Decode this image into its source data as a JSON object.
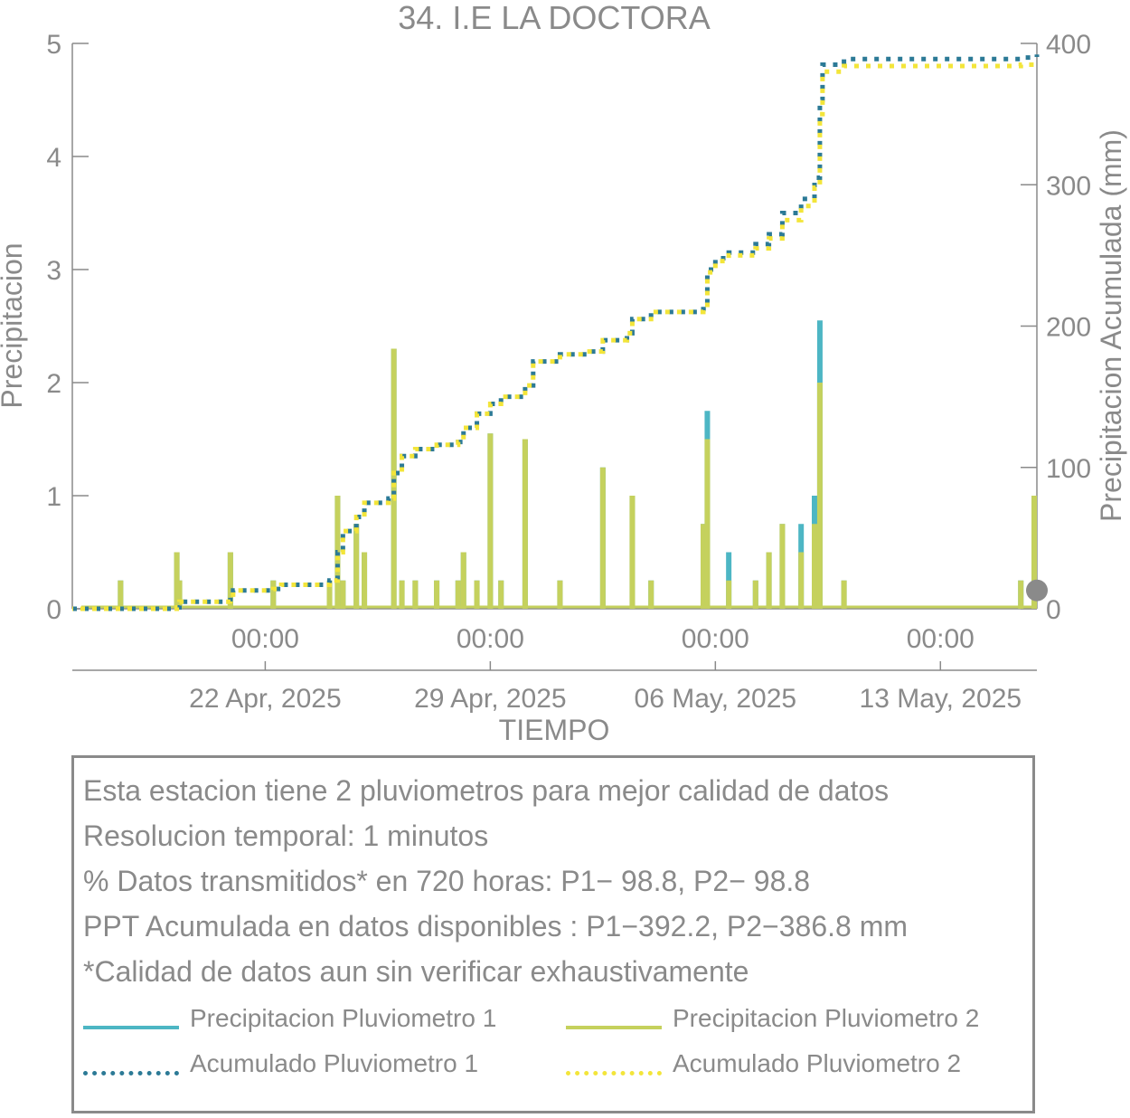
{
  "chart_data": {
    "type": "bar+line",
    "title": "34. I.E LA DOCTORA",
    "xlabel": "TIEMPO",
    "ylabel_left": "Precipitacion",
    "ylabel_right": "Precipitacion Acumulada (mm)",
    "ylim_left": [
      0,
      5
    ],
    "ylim_right": [
      0,
      400
    ],
    "xlim": [
      "2025-04-16 00:00",
      "2025-05-16 00:00"
    ],
    "grid": false,
    "y_ticks_left": [
      "0",
      "1",
      "2",
      "3",
      "4",
      "5"
    ],
    "y_ticks_right": [
      "0",
      "100",
      "200",
      "300",
      "400"
    ],
    "x_ticks": [
      {
        "time": "00:00",
        "date": "22 Apr, 2025",
        "x": "2025-04-22 00:00"
      },
      {
        "time": "00:00",
        "date": "29 Apr, 2025",
        "x": "2025-04-29 00:00"
      },
      {
        "time": "00:00",
        "date": "06 May, 2025",
        "x": "2025-05-06 00:00"
      },
      {
        "time": "00:00",
        "date": "13 May, 2025",
        "x": "2025-05-13 00:00"
      }
    ],
    "series": [
      {
        "name": "Precipitacion Pluviometro 1",
        "axis": "left",
        "kind": "bar",
        "color": "#4db6c4",
        "points": [
          [
            "2025-04-17 12:00",
            0.25
          ],
          [
            "2025-04-19 06:00",
            0.5
          ],
          [
            "2025-04-19 08:00",
            0.25
          ],
          [
            "2025-04-20 22:00",
            0.5
          ],
          [
            "2025-04-22 06:00",
            0.25
          ],
          [
            "2025-04-24 00:00",
            0.25
          ],
          [
            "2025-04-24 06:00",
            1.0
          ],
          [
            "2025-04-24 10:00",
            0.25
          ],
          [
            "2025-04-24 20:00",
            0.75
          ],
          [
            "2025-04-25 02:00",
            0.5
          ],
          [
            "2025-04-26 00:00",
            2.3
          ],
          [
            "2025-04-26 06:00",
            0.25
          ],
          [
            "2025-04-26 16:00",
            0.25
          ],
          [
            "2025-04-27 08:00",
            0.25
          ],
          [
            "2025-04-28 00:00",
            0.25
          ],
          [
            "2025-04-28 04:00",
            0.5
          ],
          [
            "2025-04-28 14:00",
            0.25
          ],
          [
            "2025-04-29 00:00",
            1.55
          ],
          [
            "2025-04-29 08:00",
            0.25
          ],
          [
            "2025-04-30 02:00",
            1.5
          ],
          [
            "2025-05-01 04:00",
            0.25
          ],
          [
            "2025-05-02 12:00",
            1.25
          ],
          [
            "2025-05-03 10:00",
            1.0
          ],
          [
            "2025-05-04 00:00",
            0.25
          ],
          [
            "2025-05-05 15:00",
            0.75
          ],
          [
            "2025-05-05 18:00",
            1.75
          ],
          [
            "2025-05-06 10:00",
            0.5
          ],
          [
            "2025-05-07 06:00",
            0.25
          ],
          [
            "2025-05-07 16:00",
            0.5
          ],
          [
            "2025-05-08 02:00",
            0.75
          ],
          [
            "2025-05-08 16:00",
            0.75
          ],
          [
            "2025-05-09 02:00",
            1.0
          ],
          [
            "2025-05-09 06:00",
            2.55
          ],
          [
            "2025-05-10 00:00",
            0.25
          ],
          [
            "2025-05-15 12:00",
            0.25
          ],
          [
            "2025-05-15 22:00",
            1.0
          ]
        ]
      },
      {
        "name": "Precipitacion Pluviometro 2",
        "axis": "left",
        "kind": "bar",
        "color": "#c5d15d",
        "points": [
          [
            "2025-04-17 12:00",
            0.25
          ],
          [
            "2025-04-19 06:00",
            0.5
          ],
          [
            "2025-04-19 08:00",
            0.25
          ],
          [
            "2025-04-20 22:00",
            0.5
          ],
          [
            "2025-04-22 06:00",
            0.25
          ],
          [
            "2025-04-24 00:00",
            0.25
          ],
          [
            "2025-04-24 06:00",
            1.0
          ],
          [
            "2025-04-24 10:00",
            0.25
          ],
          [
            "2025-04-24 20:00",
            0.75
          ],
          [
            "2025-04-25 02:00",
            0.5
          ],
          [
            "2025-04-26 00:00",
            2.3
          ],
          [
            "2025-04-26 06:00",
            0.25
          ],
          [
            "2025-04-26 16:00",
            0.25
          ],
          [
            "2025-04-27 08:00",
            0.25
          ],
          [
            "2025-04-28 00:00",
            0.25
          ],
          [
            "2025-04-28 04:00",
            0.5
          ],
          [
            "2025-04-28 14:00",
            0.25
          ],
          [
            "2025-04-29 00:00",
            1.55
          ],
          [
            "2025-04-29 08:00",
            0.25
          ],
          [
            "2025-04-30 02:00",
            1.5
          ],
          [
            "2025-05-01 04:00",
            0.25
          ],
          [
            "2025-05-02 12:00",
            1.25
          ],
          [
            "2025-05-03 10:00",
            1.0
          ],
          [
            "2025-05-04 00:00",
            0.25
          ],
          [
            "2025-05-05 15:00",
            0.75
          ],
          [
            "2025-05-05 18:00",
            1.5
          ],
          [
            "2025-05-06 10:00",
            0.25
          ],
          [
            "2025-05-07 06:00",
            0.25
          ],
          [
            "2025-05-07 16:00",
            0.5
          ],
          [
            "2025-05-08 02:00",
            0.75
          ],
          [
            "2025-05-08 16:00",
            0.5
          ],
          [
            "2025-05-09 02:00",
            0.75
          ],
          [
            "2025-05-09 06:00",
            2.0
          ],
          [
            "2025-05-10 00:00",
            0.25
          ],
          [
            "2025-05-15 12:00",
            0.25
          ],
          [
            "2025-05-15 22:00",
            1.0
          ]
        ]
      },
      {
        "name": "Acumulado Pluviometro 1",
        "axis": "right",
        "kind": "dotted-line",
        "color": "#2c7a96",
        "points": [
          [
            "2025-04-16 00:00",
            0
          ],
          [
            "2025-04-19 06:00",
            1
          ],
          [
            "2025-04-19 08:00",
            5
          ],
          [
            "2025-04-20 22:00",
            8
          ],
          [
            "2025-04-21 00:00",
            13
          ],
          [
            "2025-04-22 06:00",
            14
          ],
          [
            "2025-04-22 12:00",
            17
          ],
          [
            "2025-04-24 00:00",
            20
          ],
          [
            "2025-04-24 06:00",
            40
          ],
          [
            "2025-04-24 10:00",
            55
          ],
          [
            "2025-04-24 20:00",
            65
          ],
          [
            "2025-04-25 02:00",
            75
          ],
          [
            "2025-04-25 20:00",
            78
          ],
          [
            "2025-04-26 00:00",
            96
          ],
          [
            "2025-04-26 06:00",
            108
          ],
          [
            "2025-04-26 16:00",
            113
          ],
          [
            "2025-04-27 08:00",
            116
          ],
          [
            "2025-04-28 00:00",
            118
          ],
          [
            "2025-04-28 04:00",
            128
          ],
          [
            "2025-04-28 14:00",
            138
          ],
          [
            "2025-04-29 00:00",
            145
          ],
          [
            "2025-04-29 08:00",
            150
          ],
          [
            "2025-04-30 02:00",
            158
          ],
          [
            "2025-04-30 08:00",
            175
          ],
          [
            "2025-05-01 04:00",
            180
          ],
          [
            "2025-05-02 00:00",
            182
          ],
          [
            "2025-05-02 12:00",
            190
          ],
          [
            "2025-05-03 06:00",
            195
          ],
          [
            "2025-05-03 10:00",
            205
          ],
          [
            "2025-05-04 00:00",
            210
          ],
          [
            "2025-05-05 15:00",
            212
          ],
          [
            "2025-05-05 18:00",
            240
          ],
          [
            "2025-05-06 00:00",
            248
          ],
          [
            "2025-05-06 10:00",
            252
          ],
          [
            "2025-05-07 06:00",
            258
          ],
          [
            "2025-05-07 16:00",
            265
          ],
          [
            "2025-05-08 02:00",
            280
          ],
          [
            "2025-05-08 16:00",
            290
          ],
          [
            "2025-05-09 02:00",
            305
          ],
          [
            "2025-05-09 06:00",
            360
          ],
          [
            "2025-05-09 08:00",
            385
          ],
          [
            "2025-05-10 00:00",
            389
          ],
          [
            "2025-05-15 12:00",
            390
          ],
          [
            "2025-05-16 00:00",
            392.2
          ]
        ]
      },
      {
        "name": "Acumulado Pluviometro 2",
        "axis": "right",
        "kind": "dotted-line",
        "color": "#f3e53a",
        "points": [
          [
            "2025-04-16 00:00",
            0
          ],
          [
            "2025-04-19 06:00",
            1
          ],
          [
            "2025-04-19 08:00",
            5
          ],
          [
            "2025-04-20 22:00",
            8
          ],
          [
            "2025-04-21 00:00",
            13
          ],
          [
            "2025-04-22 06:00",
            14
          ],
          [
            "2025-04-22 12:00",
            17
          ],
          [
            "2025-04-24 00:00",
            20
          ],
          [
            "2025-04-24 06:00",
            40
          ],
          [
            "2025-04-24 10:00",
            55
          ],
          [
            "2025-04-24 20:00",
            65
          ],
          [
            "2025-04-25 02:00",
            75
          ],
          [
            "2025-04-25 20:00",
            78
          ],
          [
            "2025-04-26 00:00",
            96
          ],
          [
            "2025-04-26 06:00",
            108
          ],
          [
            "2025-04-26 16:00",
            113
          ],
          [
            "2025-04-27 08:00",
            116
          ],
          [
            "2025-04-28 00:00",
            118
          ],
          [
            "2025-04-28 04:00",
            128
          ],
          [
            "2025-04-28 14:00",
            138
          ],
          [
            "2025-04-29 00:00",
            145
          ],
          [
            "2025-04-29 08:00",
            150
          ],
          [
            "2025-04-30 02:00",
            158
          ],
          [
            "2025-04-30 08:00",
            175
          ],
          [
            "2025-05-01 04:00",
            180
          ],
          [
            "2025-05-02 00:00",
            182
          ],
          [
            "2025-05-02 12:00",
            190
          ],
          [
            "2025-05-03 06:00",
            195
          ],
          [
            "2025-05-03 10:00",
            205
          ],
          [
            "2025-05-04 00:00",
            210
          ],
          [
            "2025-05-05 15:00",
            212
          ],
          [
            "2025-05-05 18:00",
            238
          ],
          [
            "2025-05-06 00:00",
            246
          ],
          [
            "2025-05-06 10:00",
            250
          ],
          [
            "2025-05-07 06:00",
            255
          ],
          [
            "2025-05-07 16:00",
            262
          ],
          [
            "2025-05-08 02:00",
            275
          ],
          [
            "2025-05-08 16:00",
            285
          ],
          [
            "2025-05-09 02:00",
            298
          ],
          [
            "2025-05-09 06:00",
            350
          ],
          [
            "2025-05-09 08:00",
            380
          ],
          [
            "2025-05-10 00:00",
            384
          ],
          [
            "2025-05-15 12:00",
            385
          ],
          [
            "2025-05-16 00:00",
            386.8
          ]
        ]
      }
    ],
    "marker": {
      "axis": "right",
      "x": "2025-05-16 00:00",
      "y": 13,
      "color": "#8a8a8a"
    }
  },
  "info": {
    "lines": [
      "Esta estacion tiene 2 pluviometros para mejor calidad de datos",
      "Resolucion temporal: 1 minutos",
      "% Datos transmitidos* en 720 horas: P1− 98.8, P2− 98.8",
      "PPT Acumulada en datos disponibles : P1−392.2, P2−386.8 mm",
      "*Calidad de datos aun sin verificar exhaustivamente"
    ],
    "legend": [
      {
        "label": "Precipitacion Pluviometro 1",
        "color": "#4db6c4",
        "style": "solid"
      },
      {
        "label": "Precipitacion Pluviometro 2",
        "color": "#c5d15d",
        "style": "solid"
      },
      {
        "label": "Acumulado Pluviometro 1",
        "color": "#2c7a96",
        "style": "dotted"
      },
      {
        "label": "Acumulado Pluviometro 2",
        "color": "#f3e53a",
        "style": "dotted"
      }
    ]
  }
}
